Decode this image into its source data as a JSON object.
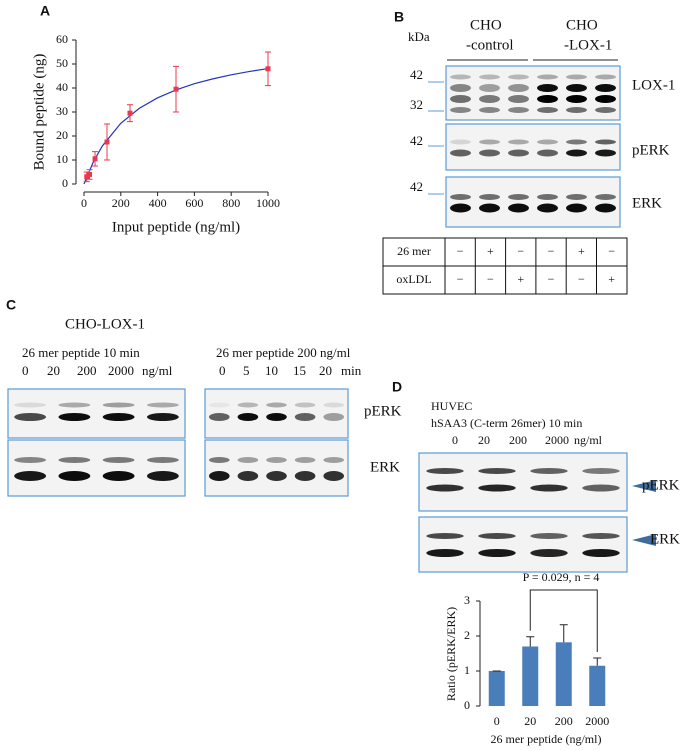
{
  "panel_labels": [
    "A",
    "B",
    "C",
    "D"
  ],
  "chart_data": [
    {
      "type": "scatter",
      "ylabel": "Bound peptide (ng)",
      "xlabel": "Input peptide (ng/ml)",
      "xlim": [
        0,
        1000
      ],
      "xticks": [
        0,
        200,
        400,
        600,
        800,
        1000
      ],
      "ylim": [
        0,
        60
      ],
      "yticks": [
        0,
        10,
        20,
        30,
        40,
        50,
        60
      ],
      "x": [
        15,
        30,
        60,
        125,
        250,
        500,
        1000
      ],
      "values": [
        3,
        4,
        10.5,
        17.5,
        29.5,
        39.5,
        48
      ],
      "errors": [
        2,
        2,
        3,
        7.5,
        3.5,
        9.5,
        7
      ],
      "color": "#e8384f",
      "fit": {
        "x": [
          0,
          50,
          100,
          200,
          300,
          400,
          500,
          600,
          700,
          800,
          900,
          1000
        ],
        "values": [
          0,
          9.1,
          15.9,
          25.3,
          31.5,
          35.9,
          39.2,
          41.8,
          43.8,
          45.5,
          46.9,
          48.1
        ],
        "color": "#2236b8"
      }
    },
    {
      "type": "bar",
      "ylabel": "Ratio (pERK/ERK)",
      "xlabel": "26 mer peptide (ng/ml)",
      "categories": [
        "0",
        "20",
        "200",
        "2000"
      ],
      "values": [
        1,
        1.7,
        1.82,
        1.15
      ],
      "errors": [
        0,
        0.28,
        0.5,
        0.22
      ],
      "color": "#4a7ebb",
      "ylim": [
        0,
        3
      ],
      "yticks": [
        0,
        1,
        2,
        3
      ],
      "annotation": "P = 0.029, n = 4"
    }
  ],
  "panel_b": {
    "kda": "kDa",
    "groups": [
      {
        "line1": "CHO",
        "line2": "-control"
      },
      {
        "line1": "CHO",
        "line2": "-LOX-1"
      }
    ],
    "markers": [
      "42",
      "32",
      "42",
      "42"
    ],
    "blots": [
      "LOX-1",
      "pERK",
      "ERK"
    ],
    "table": {
      "rows": [
        [
          "26 mer",
          "−",
          "+",
          "−",
          "−",
          "+",
          "−"
        ],
        [
          "oxLDL",
          "−",
          "−",
          "+",
          "−",
          "−",
          "+"
        ]
      ]
    }
  },
  "panel_c": {
    "cell": "CHO-LOX-1",
    "left": {
      "title": "26 mer peptide 10 min",
      "lanes": [
        "0",
        "20",
        "200",
        "2000",
        "ng/ml"
      ]
    },
    "right": {
      "title": "26 mer peptide 200 ng/ml",
      "lanes": [
        "0",
        "5",
        "10",
        "15",
        "20",
        "min"
      ]
    },
    "blots": [
      "pERK",
      "ERK"
    ]
  },
  "panel_d": {
    "cell": "HUVEC",
    "title": "hSAA3 (C-term 26mer) 10 min",
    "lanes": [
      "0",
      "20",
      "200",
      "2000",
      "ng/ml"
    ],
    "blots": [
      "pERK",
      "ERK"
    ]
  }
}
